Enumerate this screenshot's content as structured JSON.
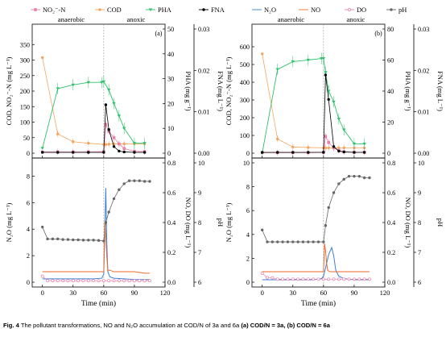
{
  "legend": [
    {
      "label": "NO₂⁻-N",
      "color": "#e97fa8",
      "marker": "square"
    },
    {
      "label": "COD",
      "color": "#f5a55e",
      "marker": "circle"
    },
    {
      "label": "PHA",
      "color": "#2ec26b",
      "marker": "tri-down"
    },
    {
      "label": "FNA",
      "color": "#000000",
      "marker": "circle"
    },
    {
      "label": "N₂O",
      "color": "#3b7fd6",
      "marker": "none"
    },
    {
      "label": "NO",
      "color": "#ef6a2b",
      "marker": "none"
    },
    {
      "label": "DO",
      "color": "#e97fa8",
      "marker": "circle-open"
    },
    {
      "label": "pH",
      "color": "#666666",
      "marker": "circle"
    }
  ],
  "caption": {
    "lead": "Fig. 4",
    "text": "The pollutant transformations, NO and N₂O accumulation at COD/N of 3a and 6a",
    "part_a": "(a) COD/N = 3a,",
    "part_b": "(b) COD/N = 6a"
  },
  "colors": {
    "no2": "#e97fa8",
    "cod": "#f5a55e",
    "pha": "#2ec26b",
    "fna": "#000000",
    "n2o": "#3b7fd6",
    "no": "#ef6a2b",
    "do": "#e97fa8",
    "ph": "#666666"
  },
  "chart_data": [
    {
      "panel": "a-top",
      "type": "line",
      "phase_labels": [
        "anaerobic",
        "anoxic"
      ],
      "phase_boundary_x": 60,
      "panel_tag": "(a)",
      "xlim": [
        -10,
        120
      ],
      "xticks": [
        0,
        30,
        60,
        90
      ],
      "ylim": [
        0,
        400
      ],
      "yticks": [
        0,
        50,
        100,
        150,
        200,
        250,
        300,
        350
      ],
      "ylabel": "COD, NO₂⁻-N (mg L⁻¹)",
      "y2lim": [
        0,
        50
      ],
      "y2ticks": [
        0,
        10,
        20,
        30,
        40,
        50
      ],
      "y2label": "PHA (mg g⁻¹)",
      "y3lim": [
        0,
        0.03
      ],
      "y3ticks": [
        0.0,
        0.01,
        0.02,
        0.03
      ],
      "y3label": "FNA (mg L⁻¹)",
      "series": [
        {
          "name": "COD",
          "axis": "y",
          "x": [
            0,
            15,
            30,
            45,
            60,
            62,
            65,
            70,
            75,
            80,
            90,
            100
          ],
          "y": [
            308,
            62,
            37,
            32,
            28,
            28,
            29,
            30,
            30,
            30,
            30,
            30
          ]
        },
        {
          "name": "NO₂⁻-N",
          "axis": "y",
          "x": [
            0,
            15,
            30,
            45,
            60,
            62,
            65,
            70,
            75,
            80,
            90,
            100
          ],
          "y": [
            4,
            4,
            4,
            4,
            5,
            92,
            70,
            50,
            30,
            15,
            6,
            5
          ]
        },
        {
          "name": "PHA",
          "axis": "y2",
          "x": [
            0,
            15,
            30,
            45,
            58,
            60,
            65,
            70,
            75,
            80,
            90,
            100
          ],
          "y": [
            2,
            26,
            27.5,
            28.5,
            28.5,
            28.8,
            25.5,
            20,
            15,
            10,
            4,
            4
          ]
        },
        {
          "name": "FNA",
          "axis": "y3",
          "x": [
            0,
            15,
            30,
            45,
            60,
            62,
            65,
            70,
            75,
            80,
            90,
            100
          ],
          "y": [
            0.0002,
            0.0002,
            0.0002,
            0.0002,
            0.0002,
            0.0117,
            0.0057,
            0.0016,
            0.0005,
            0.0003,
            0.0002,
            0.0002
          ]
        }
      ]
    },
    {
      "panel": "a-bottom",
      "type": "line",
      "xlim": [
        -10,
        120
      ],
      "xticks": [
        0,
        30,
        60,
        90,
        120
      ],
      "xlabel": "Time (min)",
      "ylim": [
        0,
        9
      ],
      "yticks": [
        0,
        2,
        4,
        6,
        8
      ],
      "ylabel": "N₂O (mg L⁻¹)",
      "y2lim": [
        0,
        0.8
      ],
      "y2ticks": [
        0.0,
        0.2,
        0.4,
        0.6,
        0.8
      ],
      "y2label": "NO, DO (mg L⁻¹)",
      "y3lim": [
        6,
        10
      ],
      "y3ticks": [
        6,
        7,
        8,
        9,
        10
      ],
      "y3label": "pH",
      "series": [
        {
          "name": "N₂O",
          "axis": "y",
          "x": [
            0,
            10,
            20,
            30,
            40,
            50,
            58,
            60,
            61,
            62,
            63,
            64,
            66,
            70,
            80,
            90,
            100,
            105
          ],
          "y": [
            0.25,
            0.25,
            0.25,
            0.25,
            0.25,
            0.25,
            0.3,
            0.6,
            3.5,
            7.1,
            3,
            0.8,
            0.4,
            0.3,
            0.25,
            0.2,
            0.2,
            0.2
          ]
        },
        {
          "name": "NO",
          "axis": "y2",
          "x": [
            0,
            10,
            30,
            55,
            58,
            60,
            61,
            62,
            63,
            64,
            66,
            70,
            80,
            90,
            100,
            105
          ],
          "y": [
            0.07,
            0.07,
            0.07,
            0.07,
            0.07,
            0.07,
            0.4,
            0.32,
            0.17,
            0.08,
            0.08,
            0.07,
            0.07,
            0.07,
            0.06,
            0.06
          ]
        },
        {
          "name": "DO",
          "axis": "y2",
          "x": [
            0,
            5,
            10,
            15,
            20,
            25,
            30,
            35,
            40,
            45,
            50,
            55,
            60,
            65,
            70,
            75,
            80,
            85,
            90,
            95,
            100,
            105
          ],
          "y": [
            0.04,
            0.01,
            0.01,
            0.01,
            0.01,
            0.01,
            0.01,
            0.01,
            0.01,
            0.01,
            0.01,
            0.01,
            0.01,
            0.01,
            0.01,
            0.01,
            0.01,
            0.01,
            0.01,
            0.01,
            0.01,
            0.01
          ]
        },
        {
          "name": "pH",
          "axis": "y3",
          "x": [
            0,
            5,
            10,
            15,
            20,
            25,
            30,
            35,
            40,
            45,
            50,
            55,
            60,
            62,
            65,
            70,
            75,
            80,
            85,
            90,
            95,
            100,
            105
          ],
          "y": [
            7.85,
            7.45,
            7.45,
            7.45,
            7.43,
            7.43,
            7.42,
            7.42,
            7.41,
            7.41,
            7.41,
            7.4,
            7.38,
            8.0,
            8.35,
            8.8,
            9.1,
            9.3,
            9.4,
            9.4,
            9.4,
            9.38,
            9.38
          ]
        }
      ]
    },
    {
      "panel": "b-top",
      "type": "line",
      "phase_labels": [
        "anaerobic",
        "anoxic"
      ],
      "phase_boundary_x": 60,
      "panel_tag": "(b)",
      "xlim": [
        -10,
        120
      ],
      "xticks": [
        0,
        30,
        60,
        90
      ],
      "ylim": [
        0,
        700
      ],
      "yticks": [
        0,
        100,
        200,
        300,
        400,
        500,
        600
      ],
      "ylabel": "COD, NO₂⁻-N (mg L⁻¹)",
      "y2lim": [
        0,
        80
      ],
      "y2ticks": [
        0,
        20,
        40,
        60,
        80
      ],
      "y2label": "PHA (mg g⁻¹)",
      "y3lim": [
        0,
        0.03
      ],
      "y3ticks": [
        0.0,
        0.01,
        0.02,
        0.03
      ],
      "y3label": "FNA (mg L⁻¹)",
      "series": [
        {
          "name": "COD",
          "axis": "y",
          "x": [
            0,
            15,
            30,
            45,
            60,
            62,
            65,
            70,
            75,
            80,
            90,
            100
          ],
          "y": [
            560,
            80,
            35,
            32,
            30,
            30,
            30,
            30,
            30,
            30,
            30,
            30
          ]
        },
        {
          "name": "NO₂⁻-N",
          "axis": "y",
          "x": [
            0,
            15,
            30,
            45,
            60,
            62,
            65,
            70,
            75,
            80,
            90,
            100
          ],
          "y": [
            3,
            3,
            3,
            3,
            5,
            95,
            60,
            30,
            15,
            8,
            5,
            5
          ]
        },
        {
          "name": "PHA",
          "axis": "y2",
          "x": [
            0,
            15,
            30,
            45,
            58,
            60,
            62,
            65,
            70,
            75,
            80,
            90,
            100
          ],
          "y": [
            0,
            54,
            59,
            60,
            61,
            61,
            52,
            40,
            33,
            22,
            15,
            6,
            6
          ]
        },
        {
          "name": "FNA",
          "axis": "y3",
          "x": [
            0,
            15,
            30,
            45,
            60,
            62,
            65,
            70,
            75,
            80,
            90,
            100
          ],
          "y": [
            0.0002,
            0.0002,
            0.0002,
            0.0002,
            0.0002,
            0.0189,
            0.013,
            0.0016,
            0.0005,
            0.0003,
            0.0002,
            0.0002
          ]
        }
      ]
    },
    {
      "panel": "b-bottom",
      "type": "line",
      "xlim": [
        -10,
        120
      ],
      "xticks": [
        0,
        30,
        60,
        90,
        120
      ],
      "xlabel": "Time (min)",
      "ylim": [
        0,
        10
      ],
      "yticks": [
        0,
        2,
        4,
        6,
        8,
        10
      ],
      "ylabel": "N₂O (mg L⁻¹)",
      "y2lim": [
        0,
        0.8
      ],
      "y2ticks": [
        0.0,
        0.2,
        0.4,
        0.6,
        0.8
      ],
      "y2label": "NO, DO (mg L⁻¹)",
      "y3lim": [
        6,
        10
      ],
      "y3ticks": [
        6,
        7,
        8,
        9,
        10
      ],
      "y3label": "pH",
      "series": [
        {
          "name": "N₂O",
          "axis": "y",
          "x": [
            0,
            10,
            20,
            30,
            40,
            50,
            58,
            60,
            62,
            65,
            68,
            70,
            72,
            75,
            80,
            90,
            100,
            105
          ],
          "y": [
            0.2,
            0.2,
            0.2,
            0.2,
            0.2,
            0.2,
            0.3,
            0.5,
            1.2,
            2.3,
            2.9,
            2.2,
            1.0,
            0.5,
            0.3,
            0.2,
            0.2,
            0.2
          ]
        },
        {
          "name": "NO",
          "axis": "y2",
          "x": [
            0,
            10,
            30,
            55,
            58,
            60,
            61,
            62,
            63,
            64,
            66,
            70,
            80,
            90,
            100,
            105
          ],
          "y": [
            0.07,
            0.07,
            0.07,
            0.07,
            0.07,
            0.07,
            0.26,
            0.21,
            0.13,
            0.08,
            0.07,
            0.07,
            0.07,
            0.07,
            0.07,
            0.07
          ]
        },
        {
          "name": "DO",
          "axis": "y2",
          "x": [
            0,
            5,
            10,
            15,
            20,
            25,
            30,
            35,
            40,
            45,
            50,
            55,
            60,
            65,
            70,
            75,
            80,
            85,
            90,
            95,
            100,
            105
          ],
          "y": [
            0.06,
            0.03,
            0.03,
            0.02,
            0.02,
            0.02,
            0.02,
            0.02,
            0.02,
            0.02,
            0.02,
            0.02,
            0.02,
            0.02,
            0.02,
            0.02,
            0.02,
            0.02,
            0.02,
            0.02,
            0.02,
            0.02
          ]
        },
        {
          "name": "pH",
          "axis": "y3",
          "x": [
            0,
            5,
            10,
            15,
            20,
            25,
            30,
            35,
            40,
            45,
            50,
            55,
            60,
            62,
            65,
            70,
            75,
            80,
            85,
            90,
            95,
            100,
            105
          ],
          "y": [
            7.75,
            7.35,
            7.35,
            7.35,
            7.35,
            7.35,
            7.35,
            7.35,
            7.35,
            7.35,
            7.35,
            7.35,
            7.35,
            7.9,
            8.5,
            9.0,
            9.3,
            9.45,
            9.55,
            9.55,
            9.55,
            9.5,
            9.5
          ]
        }
      ]
    }
  ]
}
